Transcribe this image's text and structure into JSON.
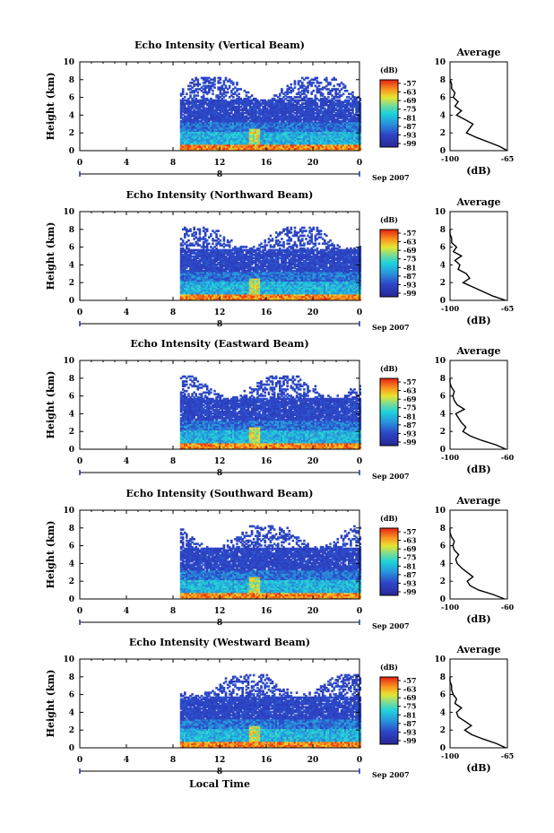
{
  "figure": {
    "xlabel": "Local Time",
    "date_label": "Sep 2007",
    "date_tick": "8",
    "colorbar_unit": "(dB)",
    "colorbar_ticks": [
      "-57",
      "-63",
      "-69",
      "-75",
      "-81",
      "-87",
      "-93",
      "-99"
    ],
    "average_unit": "(dB)",
    "colors": {
      "blank": "#ffffff",
      "low": "#2b3aa8",
      "mid": "#18b8d8",
      "high": "#e83a18",
      "line": "#000000"
    }
  },
  "chart_data": [
    {
      "type": "heatmap",
      "title": "Echo Intensity (Vertical Beam)",
      "ylabel": "Height (km)",
      "xlim": [
        0,
        24
      ],
      "xticks": [
        "0",
        "4",
        "8",
        "12",
        "16",
        "20",
        "0"
      ],
      "ylim": [
        0,
        10
      ],
      "yticks": [
        "0",
        "2",
        "4",
        "6",
        "8",
        "10"
      ],
      "data_start_hour": 8.6,
      "clim": [
        -99,
        -57
      ],
      "average": {
        "title": "Average",
        "xticks": [
          "-100",
          "-65"
        ],
        "xlim": [
          -100,
          -65
        ],
        "profile_height_km": [
          0,
          0.5,
          1,
          1.5,
          2,
          2.5,
          3,
          3.5,
          4,
          4.5,
          5,
          5.5,
          6,
          6.5,
          7,
          7.5,
          8
        ],
        "profile_db": [
          -65,
          -70,
          -77,
          -84,
          -90,
          -88,
          -86,
          -91,
          -96,
          -93,
          -97,
          -95,
          -98,
          -97,
          -99,
          -99,
          -100
        ]
      }
    },
    {
      "type": "heatmap",
      "title": "Echo Intensity (Northward Beam)",
      "ylabel": "Height (km)",
      "xlim": [
        0,
        24
      ],
      "xticks": [
        "0",
        "4",
        "8",
        "12",
        "16",
        "20",
        "0"
      ],
      "ylim": [
        0,
        10
      ],
      "yticks": [
        "0",
        "2",
        "4",
        "6",
        "8",
        "10"
      ],
      "data_start_hour": 8.6,
      "clim": [
        -99,
        -57
      ],
      "average": {
        "title": "Average",
        "xticks": [
          "-100",
          "-65"
        ],
        "xlim": [
          -100,
          -65
        ],
        "profile_height_km": [
          0,
          0.5,
          1,
          1.5,
          2,
          2.5,
          3,
          3.5,
          4,
          4.5,
          5,
          5.5,
          6,
          6.5,
          7,
          7.5,
          8
        ],
        "profile_db": [
          -66,
          -74,
          -80,
          -86,
          -92,
          -88,
          -90,
          -95,
          -94,
          -97,
          -93,
          -98,
          -96,
          -99,
          -99,
          -100,
          -100
        ]
      }
    },
    {
      "type": "heatmap",
      "title": "Echo Intensity (Eastward Beam)",
      "ylabel": "Height (km)",
      "xlim": [
        0,
        24
      ],
      "xticks": [
        "0",
        "4",
        "8",
        "12",
        "16",
        "20",
        "0"
      ],
      "ylim": [
        0,
        10
      ],
      "yticks": [
        "0",
        "2",
        "4",
        "6",
        "8",
        "10"
      ],
      "data_start_hour": 8.6,
      "clim": [
        -99,
        -57
      ],
      "average": {
        "title": "Average",
        "xticks": [
          "-100",
          "-60"
        ],
        "xlim": [
          -100,
          -60
        ],
        "profile_height_km": [
          0,
          0.5,
          1,
          1.5,
          2,
          2.5,
          3,
          3.5,
          4,
          4.5,
          5,
          5.5,
          6,
          6.5,
          7,
          7.5,
          8
        ],
        "profile_db": [
          -61,
          -68,
          -78,
          -86,
          -91,
          -89,
          -92,
          -94,
          -96,
          -90,
          -95,
          -97,
          -98,
          -97,
          -99,
          -100,
          -100
        ]
      }
    },
    {
      "type": "heatmap",
      "title": "Echo Intensity (Southward Beam)",
      "ylabel": "Height (km)",
      "xlim": [
        0,
        24
      ],
      "xticks": [
        "0",
        "4",
        "8",
        "12",
        "16",
        "20",
        "0"
      ],
      "ylim": [
        0,
        10
      ],
      "yticks": [
        "0",
        "2",
        "4",
        "6",
        "8",
        "10"
      ],
      "data_start_hour": 8.6,
      "clim": [
        -99,
        -57
      ],
      "average": {
        "title": "Average",
        "xticks": [
          "-100",
          "-60"
        ],
        "xlim": [
          -100,
          -60
        ],
        "profile_height_km": [
          0,
          0.5,
          1,
          1.5,
          2,
          2.5,
          3,
          3.5,
          4,
          4.5,
          5,
          5.5,
          6,
          6.5,
          7,
          7.5,
          8
        ],
        "profile_db": [
          -62,
          -70,
          -80,
          -86,
          -88,
          -84,
          -88,
          -92,
          -95,
          -96,
          -94,
          -97,
          -98,
          -97,
          -99,
          -100,
          -100
        ]
      }
    },
    {
      "type": "heatmap",
      "title": "Echo Intensity (Westward Beam)",
      "ylabel": "Height (km)",
      "xlim": [
        0,
        24
      ],
      "xticks": [
        "0",
        "4",
        "8",
        "12",
        "16",
        "20",
        "0"
      ],
      "ylim": [
        0,
        10
      ],
      "yticks": [
        "0",
        "2",
        "4",
        "6",
        "8",
        "10"
      ],
      "data_start_hour": 8.6,
      "clim": [
        -99,
        -57
      ],
      "average": {
        "title": "Average",
        "xticks": [
          "-100",
          "-65"
        ],
        "xlim": [
          -100,
          -65
        ],
        "profile_height_km": [
          0,
          0.5,
          1,
          1.5,
          2,
          2.5,
          3,
          3.5,
          4,
          4.5,
          5,
          5.5,
          6,
          6.5,
          7,
          7.5,
          8
        ],
        "profile_db": [
          -66,
          -72,
          -80,
          -87,
          -91,
          -87,
          -91,
          -95,
          -96,
          -93,
          -97,
          -96,
          -98,
          -99,
          -99,
          -100,
          -100
        ]
      }
    }
  ]
}
